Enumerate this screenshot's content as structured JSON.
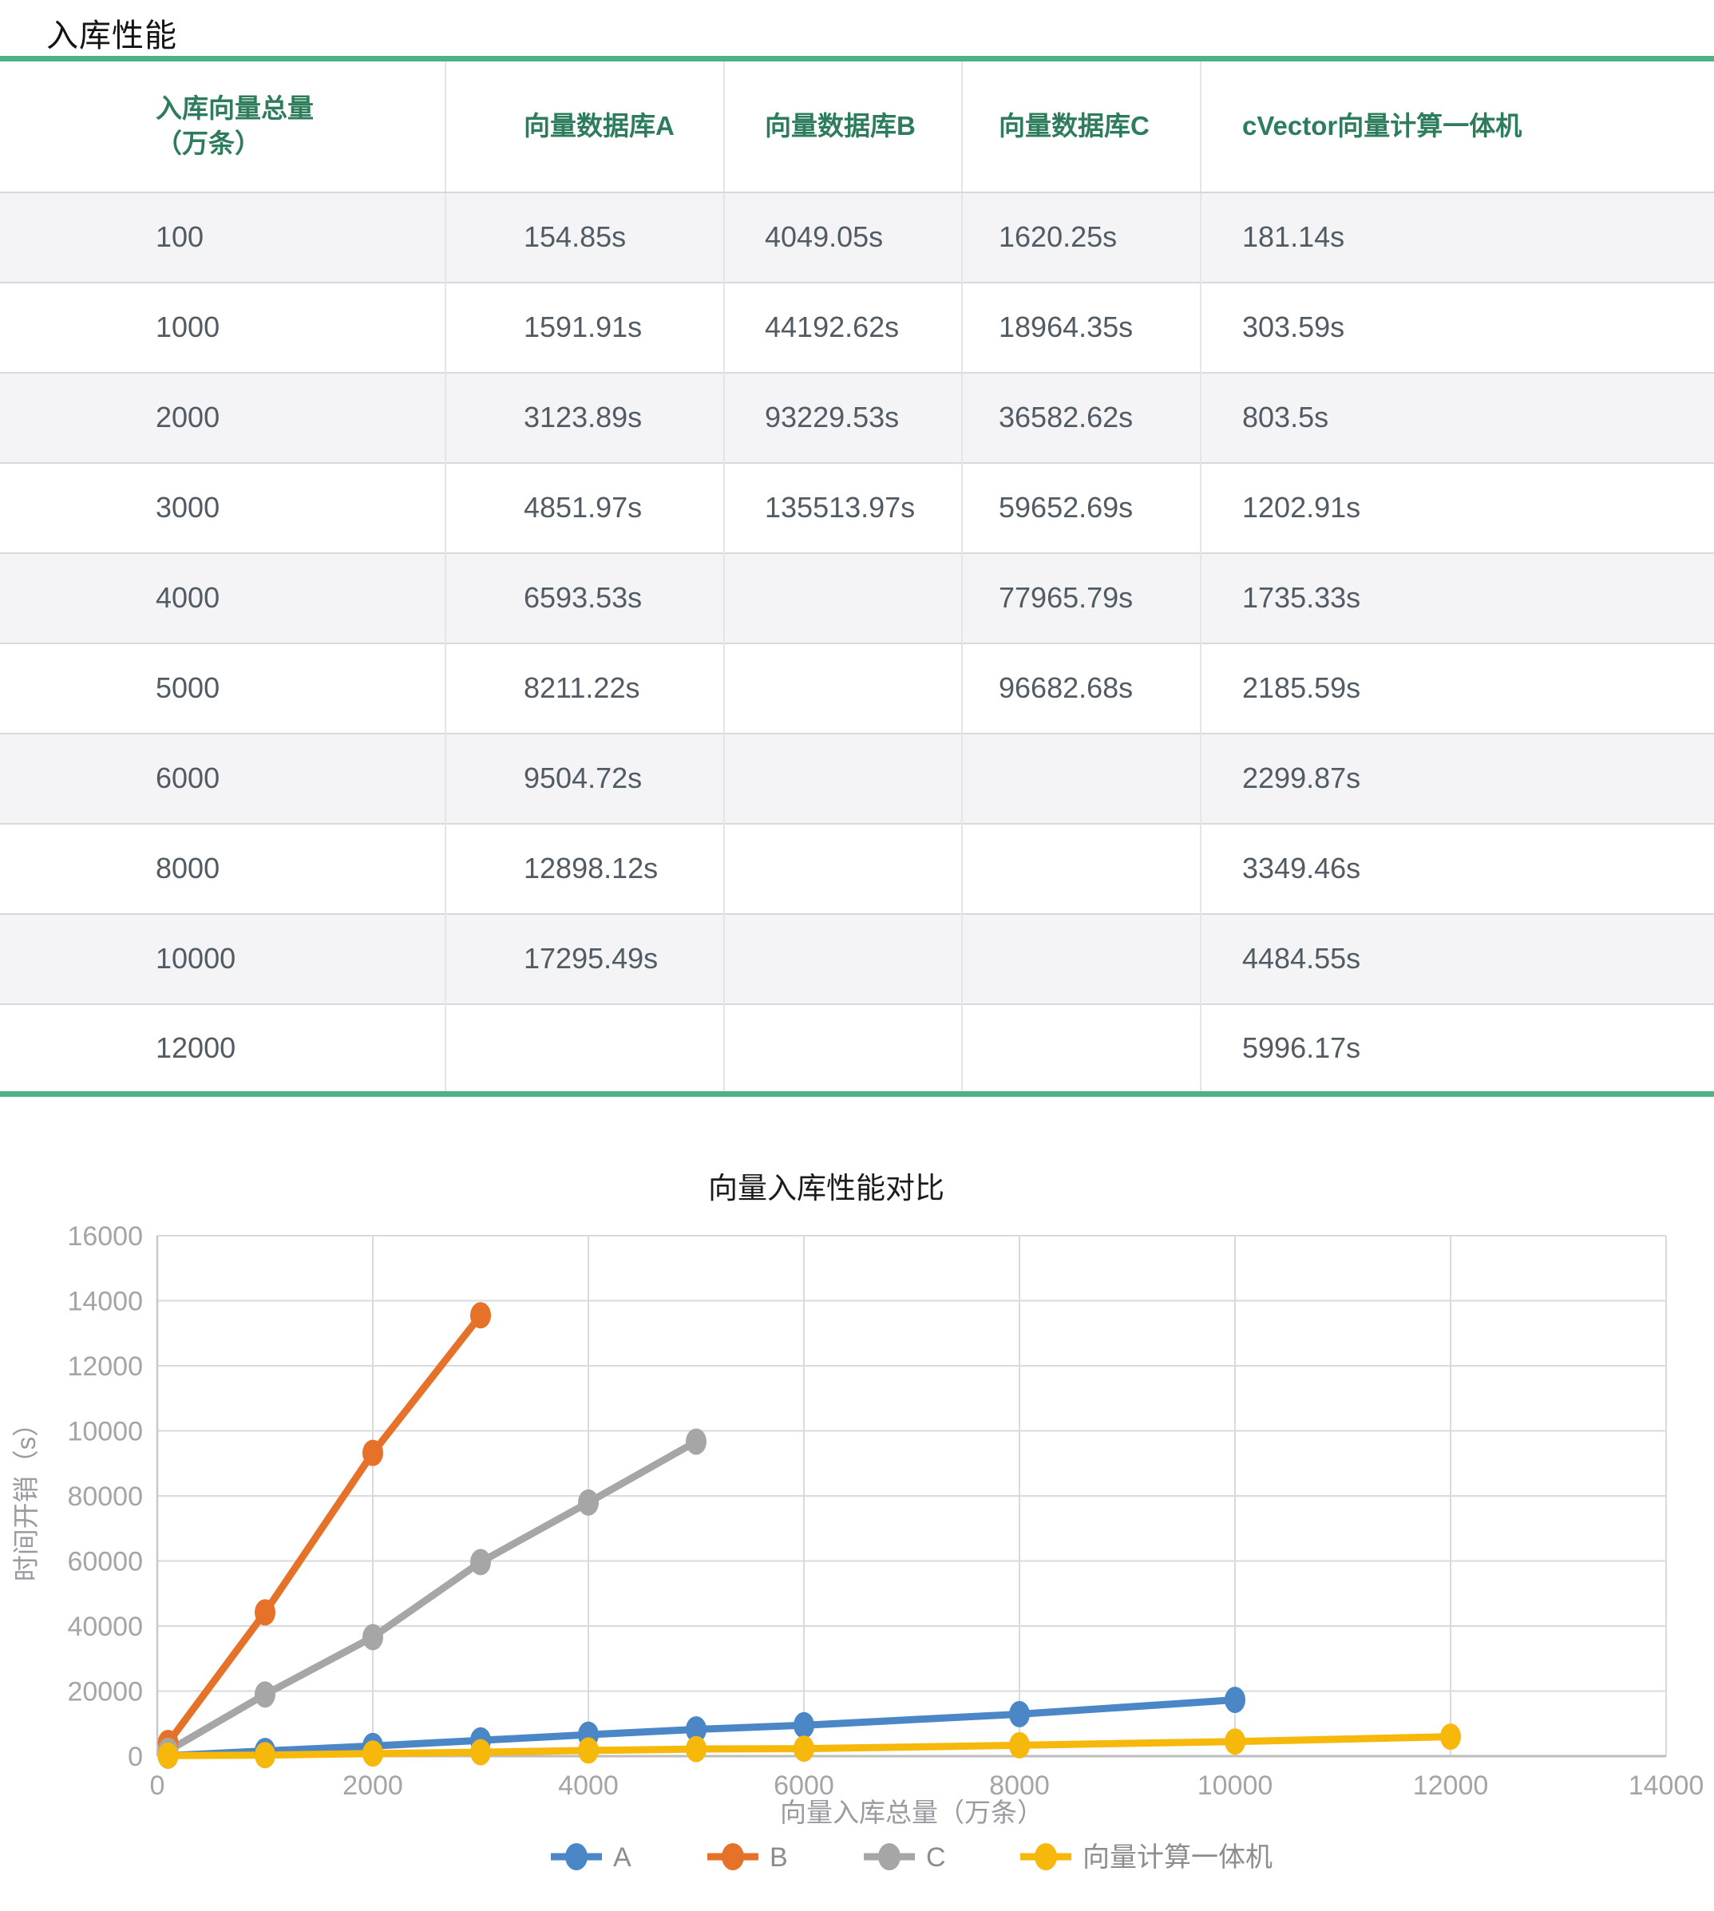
{
  "title": "入库性能",
  "colors": {
    "table_border_green": "#4eb286",
    "table_header_text_green": "#2d7c5b",
    "cell_text": "#515b63",
    "row_stripe": "#f4f4f6",
    "grid_line": "#dadadc",
    "axis_line": "#bdbdbf",
    "y_axis_line": "#c8c8ca",
    "tick_label": "#a4a4a9",
    "axis_title": "#9a9aa0",
    "legend_label": "#8c8c91",
    "chart_title_text": "#1c1c1c"
  },
  "table": {
    "headers": [
      {
        "line1": "入库向量总量",
        "line2": "（万条）"
      },
      "向量数据库A",
      "向量数据库B",
      "向量数据库C",
      "cVector向量计算一体机"
    ],
    "rows": [
      [
        "100",
        "154.85s",
        "4049.05s",
        "1620.25s",
        "181.14s"
      ],
      [
        "1000",
        "1591.91s",
        "44192.62s",
        "18964.35s",
        "303.59s"
      ],
      [
        "2000",
        "3123.89s",
        "93229.53s",
        "36582.62s",
        "803.5s"
      ],
      [
        "3000",
        "4851.97s",
        "135513.97s",
        "59652.69s",
        "1202.91s"
      ],
      [
        "4000",
        "6593.53s",
        "",
        "77965.79s",
        "1735.33s"
      ],
      [
        "5000",
        "8211.22s",
        "",
        "96682.68s",
        "2185.59s"
      ],
      [
        "6000",
        "9504.72s",
        "",
        "",
        "2299.87s"
      ],
      [
        "8000",
        "12898.12s",
        "",
        "",
        "3349.46s"
      ],
      [
        "10000",
        "17295.49s",
        "",
        "",
        "4484.55s"
      ],
      [
        "12000",
        "",
        "",
        "",
        "5996.17s"
      ]
    ]
  },
  "chart_data": {
    "type": "line",
    "title": "向量入库性能对比",
    "xlabel": "向量入库总量（万条）",
    "ylabel": "时间开销（s）",
    "xlim": [
      0,
      14000
    ],
    "y_value_max": 160000,
    "grid": true,
    "legend_position": "bottom",
    "x_ticks": [
      0,
      2000,
      4000,
      6000,
      8000,
      10000,
      12000,
      14000
    ],
    "y_tick_labels_top_to_bottom": [
      "16000",
      "14000",
      "12000",
      "10000",
      "80000",
      "60000",
      "40000",
      "20000",
      "0"
    ],
    "series": [
      {
        "key": "a",
        "name": "A",
        "color": "#4b86c6",
        "x": [
          100,
          1000,
          2000,
          3000,
          4000,
          5000,
          6000,
          8000,
          10000
        ],
        "y": [
          154.85,
          1591.91,
          3123.89,
          4851.97,
          6593.53,
          8211.22,
          9504.72,
          12898.12,
          17295.49
        ]
      },
      {
        "key": "b",
        "name": "B",
        "color": "#e67129",
        "x": [
          100,
          1000,
          2000,
          3000
        ],
        "y": [
          4049.05,
          44192.62,
          93229.53,
          135513.97
        ]
      },
      {
        "key": "c",
        "name": "C",
        "color": "#a6a6a6",
        "x": [
          100,
          1000,
          2000,
          3000,
          4000,
          5000
        ],
        "y": [
          1620.25,
          18964.35,
          36582.62,
          59652.69,
          77965.79,
          96682.68
        ]
      },
      {
        "key": "cvector",
        "name": "向量计算一体机",
        "color": "#f6b90b",
        "x": [
          100,
          1000,
          2000,
          3000,
          4000,
          5000,
          6000,
          8000,
          10000,
          12000
        ],
        "y": [
          181.14,
          303.59,
          803.5,
          1202.91,
          1735.33,
          2185.59,
          2299.87,
          3349.46,
          4484.55,
          5996.17
        ]
      }
    ]
  }
}
